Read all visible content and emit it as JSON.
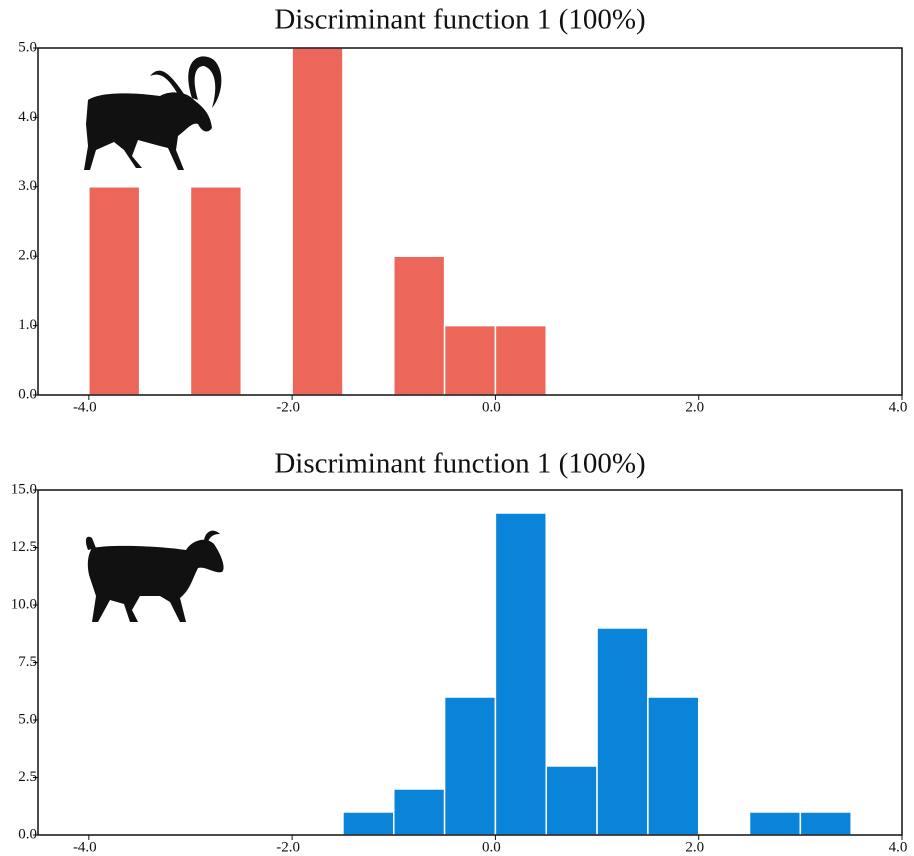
{
  "chart_data": [
    {
      "type": "histogram",
      "title": "Discriminant function 1 (100%)",
      "bins": [
        -4.0,
        -3.5,
        -3.0,
        -2.5,
        -2.0,
        -1.5,
        -1.0,
        -0.5,
        0.0,
        0.5
      ],
      "values": [
        3,
        0,
        3,
        0,
        5,
        0,
        2,
        1,
        1
      ],
      "color": "#ec665a",
      "xlim": [
        -4.5,
        4.0
      ],
      "xticks": [
        {
          "value": -4,
          "label": "-4.0"
        },
        {
          "value": -2,
          "label": "-2.0"
        },
        {
          "value": 0,
          "label": "0.0"
        },
        {
          "value": 2,
          "label": "2.0"
        },
        {
          "value": 4,
          "label": "4.0"
        }
      ],
      "ylim": [
        0,
        5
      ],
      "yticks": [
        {
          "value": 0,
          "label": "0.0"
        },
        {
          "value": 1,
          "label": "1.0"
        },
        {
          "value": 2,
          "label": "2.0"
        },
        {
          "value": 3,
          "label": "3.0"
        },
        {
          "value": 4,
          "label": "4.0"
        },
        {
          "value": 5,
          "label": "5.0"
        }
      ]
    },
    {
      "type": "histogram",
      "title": "Discriminant function 1 (100%)",
      "bins": [
        -1.5,
        -1.0,
        -0.5,
        0.0,
        0.5,
        1.0,
        1.5,
        2.0,
        2.5,
        3.0,
        3.5
      ],
      "values": [
        1,
        2,
        6,
        14,
        3,
        9,
        6,
        0,
        1,
        1
      ],
      "color": "#0a84d8",
      "xlim": [
        -4.5,
        4.0
      ],
      "xticks": [
        {
          "value": -4,
          "label": "-4.0"
        },
        {
          "value": -2,
          "label": "-2.0"
        },
        {
          "value": 0,
          "label": "0.0"
        },
        {
          "value": 2,
          "label": "2.0"
        },
        {
          "value": 4,
          "label": "4.0"
        }
      ],
      "ylim": [
        0,
        15
      ],
      "yticks": [
        {
          "value": 0,
          "label": "0.0"
        },
        {
          "value": 2.5,
          "label": "2.5"
        },
        {
          "value": 5,
          "label": "5.0"
        },
        {
          "value": 7.5,
          "label": "7.5"
        },
        {
          "value": 10,
          "label": "10.0"
        },
        {
          "value": 12.5,
          "label": "12.5"
        },
        {
          "value": 15,
          "label": "15.0"
        }
      ]
    }
  ]
}
